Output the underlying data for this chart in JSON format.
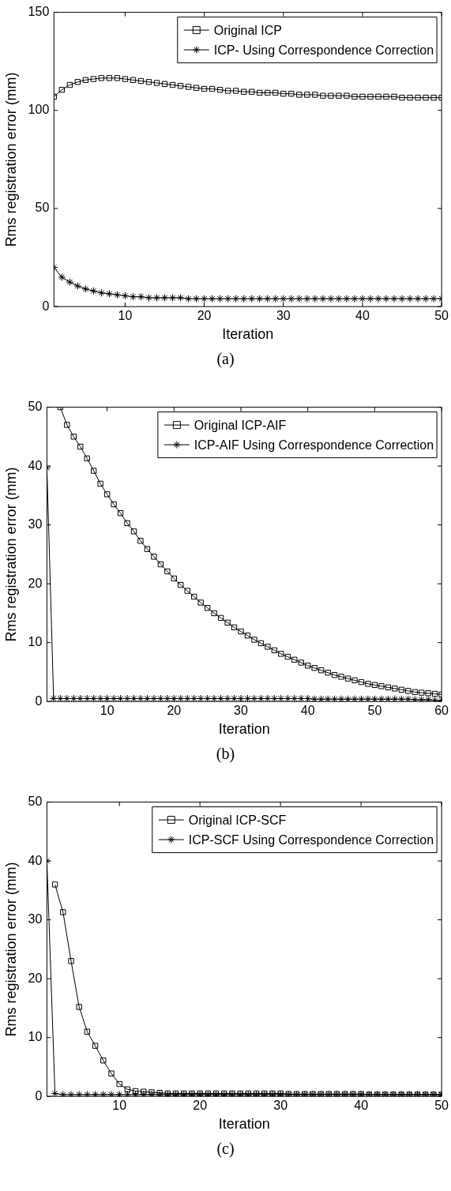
{
  "chart_data": [
    {
      "type": "line",
      "xlabel": "Iteration",
      "ylabel": "Rms registration error (mm)",
      "legend": "top right",
      "annotations": [
        "(a)"
      ],
      "x": [
        1,
        2,
        3,
        4,
        5,
        6,
        7,
        8,
        9,
        10,
        11,
        12,
        13,
        14,
        15,
        16,
        17,
        18,
        19,
        20,
        21,
        22,
        23,
        24,
        25,
        26,
        27,
        28,
        29,
        30,
        31,
        32,
        33,
        34,
        35,
        36,
        37,
        38,
        39,
        40,
        41,
        42,
        43,
        44,
        45,
        46,
        47,
        48,
        49,
        50
      ],
      "xlim": [
        1,
        50
      ],
      "xticks": [
        10,
        20,
        30,
        40,
        50
      ],
      "ylim": [
        0,
        150
      ],
      "yticks": [
        0,
        50,
        100,
        150
      ],
      "series": [
        {
          "name": "Original ICP",
          "color": "#000000",
          "marker": "square",
          "values": [
            107,
            110.5,
            113,
            114.5,
            115.5,
            116,
            116.5,
            116.5,
            116.5,
            116,
            115.5,
            115,
            114.5,
            114,
            113.5,
            113,
            112.5,
            112,
            111.5,
            111,
            111,
            110.5,
            110,
            110,
            109.5,
            109.5,
            109,
            109,
            109,
            108.5,
            108.5,
            108,
            108,
            108,
            107.5,
            107.5,
            107.5,
            107.5,
            107,
            107,
            107,
            107,
            107,
            107,
            106.5,
            106.5,
            106.5,
            106.5,
            106.5,
            106.5
          ]
        },
        {
          "name": "ICP- Using Correspondence Correction",
          "color": "#000000",
          "marker": "cross",
          "values": [
            20,
            15,
            12.5,
            10.5,
            9,
            8,
            7,
            6.5,
            6,
            5.5,
            5,
            5,
            4.5,
            4.5,
            4.5,
            4.5,
            4.5,
            4,
            4,
            4,
            4,
            4,
            4,
            4,
            4,
            4,
            4,
            4,
            4,
            4,
            4,
            4,
            4,
            4,
            4,
            4,
            4,
            4,
            4,
            4,
            4,
            4,
            4,
            4,
            4,
            4,
            4,
            4,
            4,
            4
          ]
        }
      ]
    },
    {
      "type": "line",
      "xlabel": "Iteration",
      "ylabel": "Rms registration error (mm)",
      "legend": "top right",
      "annotations": [
        "(b)"
      ],
      "x": [
        1,
        2,
        3,
        4,
        5,
        6,
        7,
        8,
        9,
        10,
        11,
        12,
        13,
        14,
        15,
        16,
        17,
        18,
        19,
        20,
        21,
        22,
        23,
        24,
        25,
        26,
        27,
        28,
        29,
        30,
        31,
        32,
        33,
        34,
        35,
        36,
        37,
        38,
        39,
        40,
        41,
        42,
        43,
        44,
        45,
        46,
        47,
        48,
        49,
        50,
        51,
        52,
        53,
        54,
        55,
        56,
        57,
        58,
        59,
        60
      ],
      "xlim": [
        1,
        60
      ],
      "xticks": [
        10,
        20,
        30,
        40,
        50,
        60
      ],
      "ylim": [
        0,
        50
      ],
      "yticks": [
        0,
        10,
        20,
        30,
        40,
        50
      ],
      "series": [
        {
          "name": "Original ICP-AIF",
          "color": "#000000",
          "marker": "square",
          "values": [
            null,
            null,
            50,
            47,
            45,
            43.3,
            41.3,
            39.2,
            37,
            35.2,
            33.5,
            32,
            30.3,
            28.9,
            27.3,
            25.9,
            24.6,
            23.3,
            22.1,
            20.9,
            19.8,
            18.8,
            17.8,
            16.8,
            15.9,
            15,
            14.2,
            13.4,
            12.6,
            11.9,
            11.2,
            10.5,
            9.9,
            9.3,
            8.7,
            8.1,
            7.6,
            7.1,
            6.6,
            6.1,
            5.7,
            5.3,
            4.9,
            4.5,
            4.2,
            3.9,
            3.6,
            3.3,
            3,
            2.8,
            2.6,
            2.4,
            2.2,
            2,
            1.8,
            1.6,
            1.5,
            1.4,
            1.3,
            1.2
          ]
        },
        {
          "name": "ICP-AIF Using Correspondence Correction",
          "color": "#000000",
          "marker": "cross",
          "values": [
            39.7,
            0.5,
            0.5,
            0.5,
            0.5,
            0.5,
            0.5,
            0.5,
            0.5,
            0.5,
            0.5,
            0.5,
            0.5,
            0.5,
            0.5,
            0.5,
            0.5,
            0.5,
            0.5,
            0.5,
            0.5,
            0.5,
            0.5,
            0.5,
            0.5,
            0.5,
            0.5,
            0.5,
            0.5,
            0.5,
            0.5,
            0.5,
            0.5,
            0.5,
            0.5,
            0.5,
            0.5,
            0.5,
            0.5,
            0.5,
            0.4,
            0.4,
            0.4,
            0.4,
            0.4,
            0.4,
            0.4,
            0.4,
            0.4,
            0.4,
            0.4,
            0.4,
            0.4,
            0.4,
            0.4,
            0.3,
            0.3,
            0.3,
            0.2,
            0.2
          ]
        }
      ]
    },
    {
      "type": "line",
      "xlabel": "Iteration",
      "ylabel": "Rms registration error (mm)",
      "legend": "top right",
      "annotations": [
        "(c)"
      ],
      "x": [
        1,
        2,
        3,
        4,
        5,
        6,
        7,
        8,
        9,
        10,
        11,
        12,
        13,
        14,
        15,
        16,
        17,
        18,
        19,
        20,
        21,
        22,
        23,
        24,
        25,
        26,
        27,
        28,
        29,
        30,
        31,
        32,
        33,
        34,
        35,
        36,
        37,
        38,
        39,
        40,
        41,
        42,
        43,
        44,
        45,
        46,
        47,
        48,
        49,
        50
      ],
      "xlim": [
        1,
        50
      ],
      "xticks": [
        10,
        20,
        30,
        40,
        50
      ],
      "ylim": [
        0,
        50
      ],
      "yticks": [
        0,
        10,
        20,
        30,
        40,
        50
      ],
      "series": [
        {
          "name": "Original ICP-SCF",
          "color": "#000000",
          "marker": "square",
          "values": [
            null,
            36,
            31.3,
            23,
            15.2,
            11,
            8.6,
            6.1,
            3.9,
            2.1,
            1.2,
            0.9,
            0.8,
            0.7,
            0.6,
            0.5,
            0.5,
            0.5,
            0.5,
            0.5,
            0.5,
            0.5,
            0.5,
            0.5,
            0.5,
            0.5,
            0.5,
            0.5,
            0.5,
            0.5,
            0.4,
            0.4,
            0.4,
            0.4,
            0.4,
            0.4,
            0.4,
            0.4,
            0.4,
            0.4,
            0.3,
            0.3,
            0.3,
            0.3,
            0.3,
            0.3,
            0.3,
            0.3,
            0.3,
            0.3
          ]
        },
        {
          "name": "ICP-SCF Using Correspondence Correction",
          "color": "#000000",
          "marker": "cross",
          "values": [
            40,
            0.5,
            0.3,
            0.3,
            0.3,
            0.3,
            0.3,
            0.3,
            0.3,
            0.3,
            0.3,
            0.3,
            0.3,
            0.3,
            0.3,
            0.3,
            0.3,
            0.3,
            0.3,
            0.3,
            0.3,
            0.3,
            0.3,
            0.3,
            0.3,
            0.3,
            0.3,
            0.3,
            0.3,
            0.3,
            0.3,
            0.3,
            0.3,
            0.3,
            0.3,
            0.3,
            0.3,
            0.3,
            0.3,
            0.3,
            0.3,
            0.3,
            0.3,
            0.3,
            0.3,
            0.3,
            0.3,
            0.3,
            0.3,
            0.3
          ]
        }
      ]
    }
  ]
}
